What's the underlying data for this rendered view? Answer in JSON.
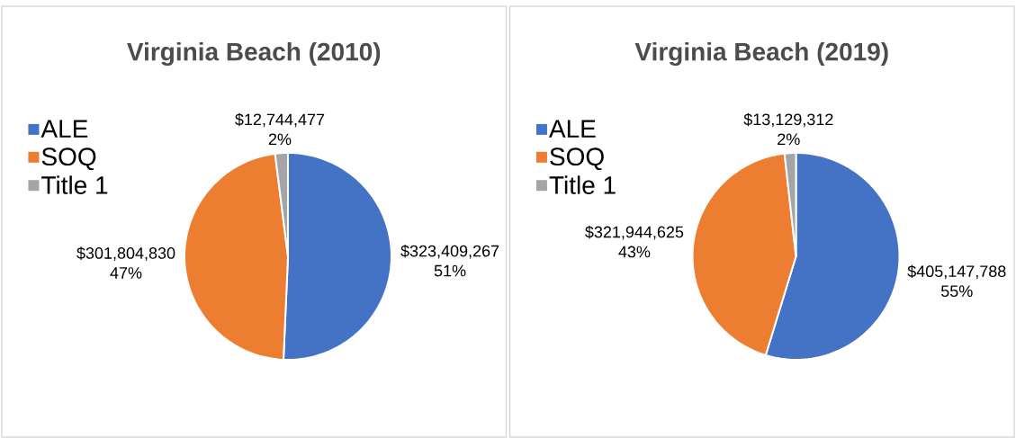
{
  "chart_data": [
    {
      "type": "pie",
      "title": "Virginia Beach (2010)",
      "categories": [
        "ALE",
        "SOQ",
        "Title 1"
      ],
      "values": [
        323409267,
        301804830,
        12744477
      ],
      "colors": [
        "#4472c4",
        "#ed7d31",
        "#a5a5a5"
      ],
      "value_labels": [
        "$323,409,267 51%",
        "$301,804,830 47%",
        "$12,744,477 2%"
      ],
      "legend": "left"
    },
    {
      "type": "pie",
      "title": "Virginia Beach (2019)",
      "categories": [
        "ALE",
        "SOQ",
        "Title 1"
      ],
      "values": [
        405147788,
        321944625,
        13129312
      ],
      "colors": [
        "#4472c4",
        "#ed7d31",
        "#a5a5a5"
      ],
      "value_labels": [
        "$405,147,788 55%",
        "$321,944,625 43%",
        "$13,129,312 2%"
      ],
      "legend": "left"
    }
  ]
}
